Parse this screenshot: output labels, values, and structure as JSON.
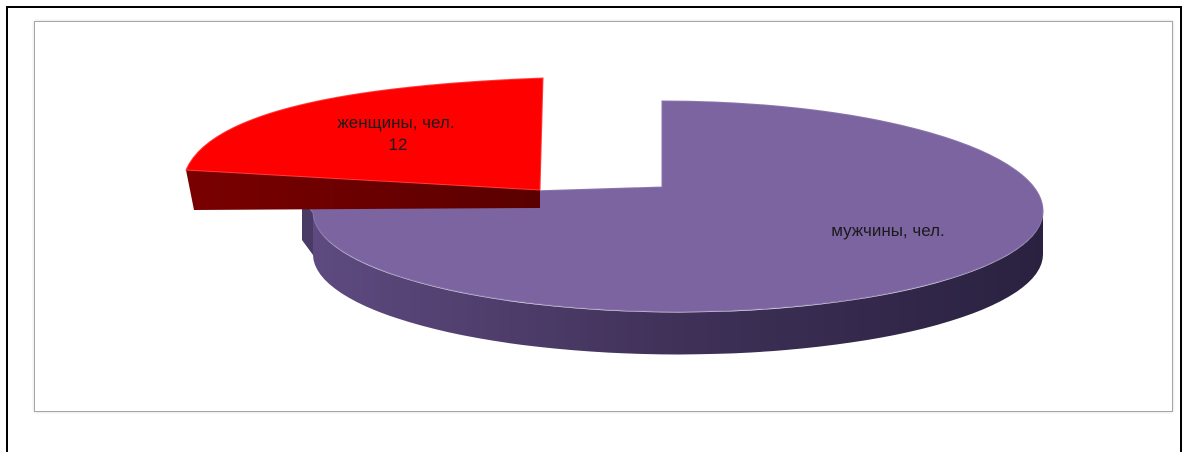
{
  "chart_data": {
    "type": "pie",
    "style": "3d-exploded",
    "title": "",
    "slices": [
      {
        "name": "мужчины, чел.",
        "label": "мужчины, чел.",
        "value_label": "",
        "value": null,
        "color": "#7b64a0"
      },
      {
        "name": "женщины, чел.",
        "label": "женщины, чел.",
        "value_label": "12",
        "value": 12,
        "color": "#ff0000"
      }
    ],
    "legend": "none"
  }
}
